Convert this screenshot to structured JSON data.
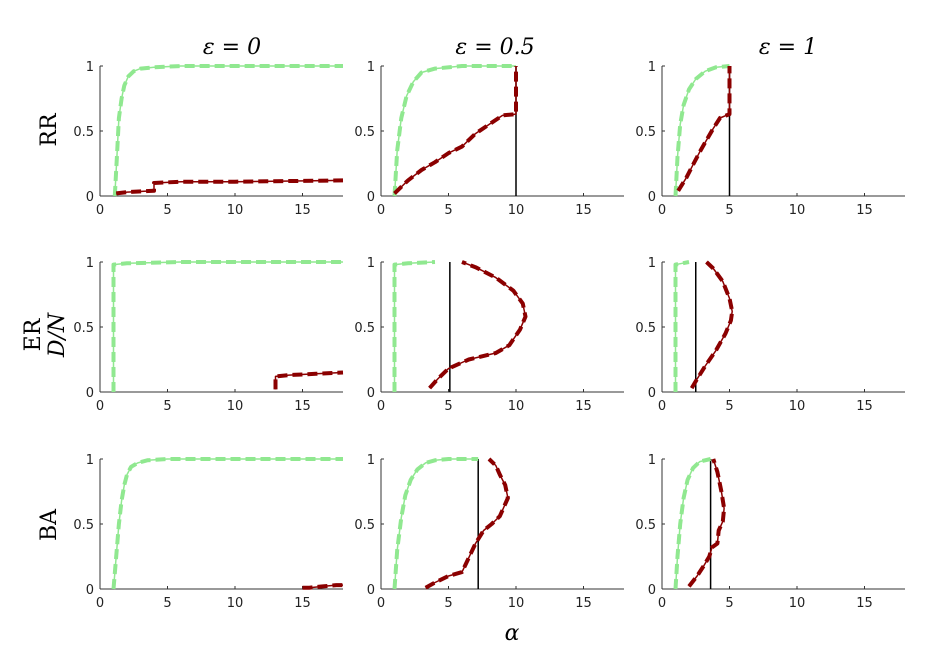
{
  "figure": {
    "column_titles": [
      "ε = 0",
      "ε = 0.5",
      "ε = 1"
    ],
    "row_labels": [
      "RR",
      "ER",
      "BA"
    ],
    "row_sublabel": "D/N",
    "xlabel": "α"
  },
  "chart_data": [
    {
      "type": "line",
      "row": 0,
      "col": 0,
      "xlim": [
        0,
        18
      ],
      "ylim": [
        0,
        1
      ],
      "xticks": [
        0,
        5,
        10,
        15
      ],
      "yticks": [
        0,
        0.5,
        1
      ],
      "series": [
        {
          "color": "#90e890",
          "style": "dashed",
          "x": [
            1.1,
            1.25,
            1.4,
            1.6,
            1.8,
            2.1,
            2.5,
            3,
            4,
            6,
            10,
            18
          ],
          "y": [
            0,
            0.3,
            0.6,
            0.75,
            0.85,
            0.92,
            0.96,
            0.98,
            0.99,
            1,
            1,
            1
          ]
        },
        {
          "color": "#8b0000",
          "style": "dashed",
          "x": [
            1.2,
            2,
            4,
            4,
            6,
            10,
            18
          ],
          "y": [
            0.02,
            0.03,
            0.04,
            0.1,
            0.11,
            0.11,
            0.12
          ]
        }
      ]
    },
    {
      "type": "line",
      "row": 0,
      "col": 1,
      "xlim": [
        0,
        18
      ],
      "ylim": [
        0,
        1
      ],
      "xticks": [
        0,
        5,
        10,
        15
      ],
      "yticks": [
        0,
        0.5,
        1
      ],
      "vline": 10,
      "series": [
        {
          "color": "#90e890",
          "style": "dashed",
          "x": [
            1,
            1.2,
            1.5,
            1.9,
            2.4,
            3,
            4,
            6,
            10
          ],
          "y": [
            0,
            0.35,
            0.6,
            0.77,
            0.88,
            0.95,
            0.98,
            1,
            1
          ]
        },
        {
          "color": "#8b0000",
          "style": "dashed",
          "x": [
            1,
            2,
            3,
            4,
            5,
            6,
            7,
            8,
            9,
            10,
            10
          ],
          "y": [
            0.02,
            0.12,
            0.2,
            0.26,
            0.33,
            0.38,
            0.48,
            0.55,
            0.62,
            0.63,
            1
          ]
        }
      ]
    },
    {
      "type": "line",
      "row": 0,
      "col": 2,
      "xlim": [
        0,
        18
      ],
      "ylim": [
        0,
        1
      ],
      "xticks": [
        0,
        5,
        10,
        15
      ],
      "yticks": [
        0,
        0.5,
        1
      ],
      "vline": 5,
      "series": [
        {
          "color": "#90e890",
          "style": "dashed",
          "x": [
            1,
            1.15,
            1.35,
            1.6,
            2,
            2.5,
            3.2,
            4,
            5
          ],
          "y": [
            0,
            0.3,
            0.55,
            0.7,
            0.82,
            0.9,
            0.96,
            0.99,
            1
          ]
        },
        {
          "color": "#8b0000",
          "style": "dashed",
          "x": [
            1.2,
            1.8,
            2.3,
            2.8,
            3.3,
            3.8,
            4.3,
            5,
            5
          ],
          "y": [
            0.04,
            0.14,
            0.24,
            0.34,
            0.43,
            0.52,
            0.6,
            0.63,
            1
          ]
        }
      ]
    },
    {
      "type": "line",
      "row": 1,
      "col": 0,
      "xlim": [
        0,
        18
      ],
      "ylim": [
        0,
        1
      ],
      "xticks": [
        0,
        5,
        10,
        15
      ],
      "yticks": [
        0,
        0.5,
        1
      ],
      "series": [
        {
          "color": "#90e890",
          "style": "dashed",
          "x": [
            1,
            1,
            2,
            6,
            10,
            18
          ],
          "y": [
            0,
            0.98,
            0.99,
            1,
            1,
            1
          ]
        },
        {
          "color": "#8b0000",
          "style": "dashed",
          "x": [
            13,
            13,
            14,
            16,
            18
          ],
          "y": [
            0.02,
            0.12,
            0.13,
            0.14,
            0.15
          ]
        }
      ]
    },
    {
      "type": "line",
      "row": 1,
      "col": 1,
      "xlim": [
        0,
        18
      ],
      "ylim": [
        0,
        1
      ],
      "xticks": [
        0,
        5,
        10,
        15
      ],
      "yticks": [
        0,
        0.5,
        1
      ],
      "vline": 5.1,
      "series": [
        {
          "color": "#90e890",
          "style": "dashed",
          "x": [
            1,
            1,
            2,
            4
          ],
          "y": [
            0,
            0.98,
            0.99,
            1
          ]
        },
        {
          "color": "#8b0000",
          "style": "dashed",
          "x": [
            3.6,
            4.2,
            5,
            6.5,
            8.5,
            9.5,
            10.3,
            10.7,
            10.5,
            9.8,
            8.5,
            7,
            6
          ],
          "y": [
            0.03,
            0.1,
            0.18,
            0.25,
            0.3,
            0.36,
            0.48,
            0.58,
            0.68,
            0.78,
            0.88,
            0.96,
            1
          ]
        }
      ]
    },
    {
      "type": "line",
      "row": 1,
      "col": 2,
      "xlim": [
        0,
        18
      ],
      "ylim": [
        0,
        1
      ],
      "xticks": [
        0,
        5,
        10,
        15
      ],
      "yticks": [
        0,
        0.5,
        1
      ],
      "vline": 2.5,
      "series": [
        {
          "color": "#90e890",
          "style": "dashed",
          "x": [
            1,
            1,
            1.5,
            2
          ],
          "y": [
            0,
            0.98,
            0.99,
            1
          ]
        },
        {
          "color": "#8b0000",
          "style": "dashed",
          "x": [
            2.2,
            2.6,
            3.2,
            4,
            4.7,
            5.1,
            5.2,
            5,
            4.5,
            3.8,
            3.3
          ],
          "y": [
            0.03,
            0.1,
            0.2,
            0.32,
            0.45,
            0.55,
            0.62,
            0.72,
            0.85,
            0.95,
            1
          ]
        }
      ]
    },
    {
      "type": "line",
      "row": 2,
      "col": 0,
      "xlim": [
        0,
        18
      ],
      "ylim": [
        0,
        1
      ],
      "xticks": [
        0,
        5,
        10,
        15
      ],
      "yticks": [
        0,
        0.5,
        1
      ],
      "series": [
        {
          "color": "#90e890",
          "style": "dashed",
          "x": [
            1,
            1.2,
            1.4,
            1.6,
            1.8,
            2,
            2.3,
            2.8,
            3.5,
            5,
            10,
            18
          ],
          "y": [
            0,
            0.25,
            0.5,
            0.68,
            0.8,
            0.88,
            0.94,
            0.97,
            0.99,
            1,
            1,
            1
          ]
        },
        {
          "color": "#8b0000",
          "style": "dashed",
          "x": [
            15,
            15.5,
            16.5,
            17.5,
            18
          ],
          "y": [
            0.01,
            0.01,
            0.02,
            0.03,
            0.03
          ]
        }
      ]
    },
    {
      "type": "line",
      "row": 2,
      "col": 1,
      "xlim": [
        0,
        18
      ],
      "ylim": [
        0,
        1
      ],
      "xticks": [
        0,
        5,
        10,
        15
      ],
      "yticks": [
        0,
        0.5,
        1
      ],
      "vline": 7.2,
      "series": [
        {
          "color": "#90e890",
          "style": "dashed",
          "x": [
            1,
            1.2,
            1.5,
            1.8,
            2.2,
            2.7,
            3.3,
            4,
            5,
            7.2
          ],
          "y": [
            0,
            0.3,
            0.55,
            0.72,
            0.84,
            0.92,
            0.97,
            0.99,
            1,
            1
          ]
        },
        {
          "color": "#8b0000",
          "style": "dashed",
          "x": [
            3.3,
            4,
            5,
            6,
            7,
            7.6,
            8.2,
            8.8,
            9.4,
            9.2,
            8.8,
            8.5,
            8
          ],
          "y": [
            0.01,
            0.05,
            0.1,
            0.13,
            0.35,
            0.45,
            0.5,
            0.56,
            0.7,
            0.8,
            0.88,
            0.95,
            1
          ]
        }
      ]
    },
    {
      "type": "line",
      "row": 2,
      "col": 2,
      "xlim": [
        0,
        18
      ],
      "ylim": [
        0,
        1
      ],
      "xticks": [
        0,
        5,
        10,
        15
      ],
      "yticks": [
        0,
        0.5,
        1
      ],
      "vline": 3.6,
      "series": [
        {
          "color": "#90e890",
          "style": "dashed",
          "x": [
            1,
            1.15,
            1.35,
            1.6,
            1.9,
            2.3,
            2.8,
            3.6
          ],
          "y": [
            0,
            0.25,
            0.5,
            0.7,
            0.84,
            0.93,
            0.98,
            1
          ]
        },
        {
          "color": "#8b0000",
          "style": "dashed",
          "x": [
            2,
            2.6,
            3.1,
            3.5,
            3.7,
            4.1,
            4.2,
            4.5,
            4.6,
            4.4,
            4.1,
            3.8
          ],
          "y": [
            0.02,
            0.1,
            0.18,
            0.25,
            0.32,
            0.35,
            0.45,
            0.52,
            0.62,
            0.75,
            0.9,
            1
          ]
        }
      ]
    }
  ]
}
